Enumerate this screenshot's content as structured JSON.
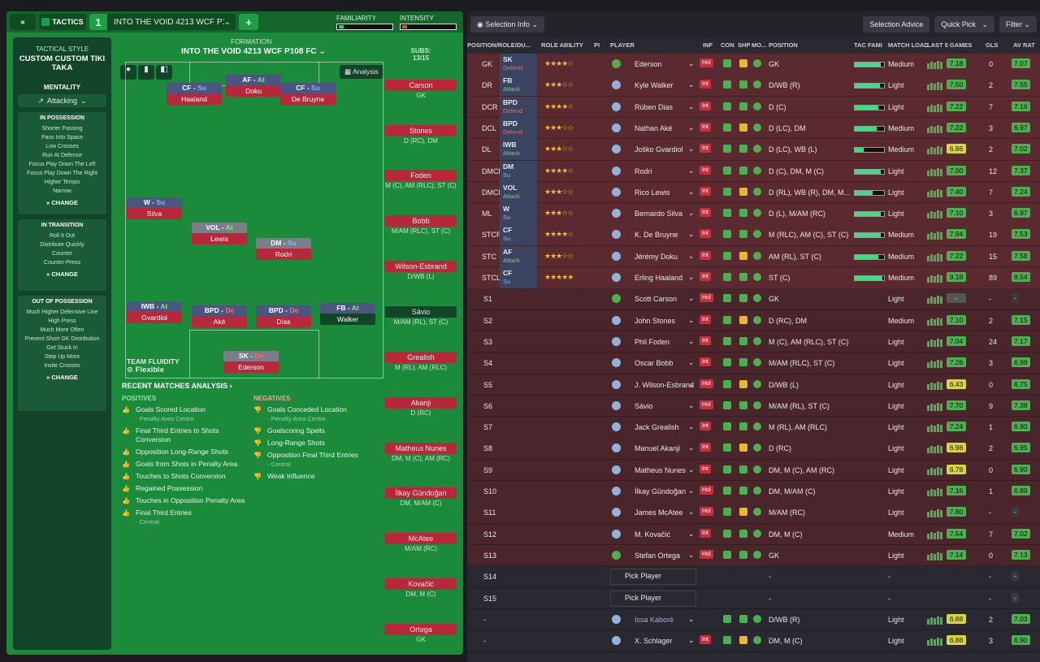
{
  "topbar": {
    "back": "«",
    "tactics_label": "TACTICS",
    "slot": "1",
    "tactic_name": "INTO THE VOID 4213  WCF P1...",
    "add": "+",
    "familiarity": "FAMILIARITY",
    "intensity": "INTENSITY"
  },
  "sidebar": {
    "style_title": "TACTICAL STYLE",
    "style": "CUSTOM CUSTOM TIKI TAKA",
    "mentality_title": "MENTALITY",
    "mentality": "Attacking",
    "in_possession": {
      "title": "IN POSSESSION",
      "items": [
        "Shorter Passing",
        "Pass Into Space",
        "Low Crosses",
        "Run At Defence",
        "Focus Play Down The Left",
        "Focus Play Down The Right",
        "Higher Tempo",
        "Narrow"
      ],
      "change": "CHANGE"
    },
    "in_transition": {
      "title": "IN TRANSITION",
      "items": [
        "Roll It Out",
        "Distribute Quickly",
        "Counter",
        "Counter-Press"
      ],
      "change": "CHANGE"
    },
    "out_of_possession": {
      "title": "OUT OF POSSESSION",
      "items": [
        "Much Higher Defensive Line",
        "High Press",
        "Much More Often",
        "Prevent Short GK Distribution",
        "Get Stuck In",
        "Step Up More",
        "Invite Crosses"
      ],
      "change": "CHANGE"
    }
  },
  "formation": {
    "title": "FORMATION",
    "name": "INTO THE VOID 4213  WCF P108 FC",
    "analysis": "Analysis",
    "fluidity_label": "TEAM FLUIDITY",
    "fluidity": "Flexible"
  },
  "pitch": [
    {
      "role": "CF",
      "duty": "Su",
      "name": "Haaland"
    },
    {
      "role": "AF",
      "duty": "At",
      "name": "Doku"
    },
    {
      "role": "CF",
      "duty": "Su",
      "name": "De Bruyne"
    },
    {
      "role": "W",
      "duty": "Su",
      "name": "Silva"
    },
    {
      "role": "VOL",
      "duty": "At",
      "name": "Lewis"
    },
    {
      "role": "DM",
      "duty": "Su",
      "name": "Rodri"
    },
    {
      "role": "IWB",
      "duty": "At",
      "name": "Gvardiol"
    },
    {
      "role": "BPD",
      "duty": "De",
      "name": "Aké"
    },
    {
      "role": "BPD",
      "duty": "De",
      "name": "Dias"
    },
    {
      "role": "FB",
      "duty": "At",
      "name": "Walker"
    },
    {
      "role": "SK",
      "duty": "De",
      "name": "Ederson"
    }
  ],
  "subs": {
    "label": "SUBS:",
    "count": "13/15",
    "list": [
      {
        "name": "Carson",
        "pos": "GK"
      },
      {
        "name": "Stones",
        "pos": "D (RC), DM"
      },
      {
        "name": "Foden",
        "pos": "M (C), AM (RLC), ST (C)"
      },
      {
        "name": "Bobb",
        "pos": "M/AM (RLC), ST (C)"
      },
      {
        "name": "Wilson-Esbrand",
        "pos": "D/WB (L)"
      },
      {
        "name": "Sávio",
        "pos": "M/AM (RL), ST (C)"
      },
      {
        "name": "Grealish",
        "pos": "M (RL), AM (RLC)"
      },
      {
        "name": "Akanji",
        "pos": "D (RC)"
      },
      {
        "name": "Matheus Nunes",
        "pos": "DM, M (C), AM (RC)"
      },
      {
        "name": "İlkay Gündoğan",
        "pos": "DM, M/AM (C)"
      },
      {
        "name": "McAtee",
        "pos": "M/AM (RC)"
      },
      {
        "name": "Kovačić",
        "pos": "DM, M (C)"
      },
      {
        "name": "Ortega",
        "pos": "GK"
      }
    ]
  },
  "analysis": {
    "title": "RECENT MATCHES ANALYSIS ›",
    "positives_title": "POSITIVES",
    "negatives_title": "NEGATIVES",
    "positives": [
      {
        "t": "Goals Scored Location",
        "s": "- Penalty Area Centre"
      },
      {
        "t": "Final Third Entries to Shots Conversion",
        "s": ""
      },
      {
        "t": "Opposition Long-Range Shots",
        "s": ""
      },
      {
        "t": "Goals from Shots in Penalty Area",
        "s": ""
      },
      {
        "t": "Touches to Shots Conversion",
        "s": ""
      },
      {
        "t": "Regained Possession",
        "s": ""
      },
      {
        "t": "Touches in Opposition Penalty Area",
        "s": ""
      },
      {
        "t": "Final Third Entries",
        "s": "- Central"
      }
    ],
    "negatives": [
      {
        "t": "Goals Conceded Location",
        "s": "- Penalty Area Centre"
      },
      {
        "t": "Goalscoring Spells",
        "s": ""
      },
      {
        "t": "Long-Range Shots",
        "s": ""
      },
      {
        "t": "Opposition Final Third Entries",
        "s": "- Central"
      },
      {
        "t": "Weak Influence",
        "s": ""
      }
    ]
  },
  "right": {
    "selection_info": "Selection Info",
    "selection_advice": "Selection Advice",
    "quick_pick": "Quick Pick",
    "filter": "Filter",
    "headers": [
      "POSITION/ROLE/DU...",
      "ROLE ABILITY",
      "PI",
      "PLAYER",
      "INF",
      "CON",
      "SHP",
      "MO...",
      "POSITION",
      "TAC FAMI",
      "MATCH LOAD",
      "LAST 5 GAMES",
      "GLS",
      "AV RAT"
    ],
    "rows": [
      {
        "pos": "GK",
        "role": "SK",
        "duty": "Defend",
        "stars": "★★★★☆",
        "player": "Ederson",
        "inf": "Hol",
        "position": "GK",
        "fam": 0.9,
        "load": "Medium",
        "rat": "7.18",
        "gls": "0",
        "av": "7.07"
      },
      {
        "pos": "DR",
        "role": "FB",
        "duty": "Attack",
        "stars": "★★★☆☆",
        "player": "Kyle Walker",
        "inf": "Int",
        "position": "D/WB (R)",
        "fam": 0.85,
        "load": "Light",
        "rat": "7.50",
        "gls": "2",
        "av": "7.55"
      },
      {
        "pos": "DCR",
        "role": "BPD",
        "duty": "Defend",
        "stars": "★★★★☆",
        "player": "Rúben Dias",
        "inf": "Int",
        "position": "D (C)",
        "fam": 0.8,
        "load": "Light",
        "rat": "7.22",
        "gls": "7",
        "av": "7.16"
      },
      {
        "pos": "DCL",
        "role": "BPD",
        "duty": "Defend",
        "stars": "★★★☆☆",
        "player": "Nathan Aké",
        "inf": "Int",
        "position": "D (LC), DM",
        "fam": 0.75,
        "load": "Medium",
        "rat": "7.22",
        "gls": "3",
        "av": "6.97"
      },
      {
        "pos": "DL",
        "role": "IWB",
        "duty": "Attack",
        "stars": "★★★☆☆",
        "player": "Joško Gvardiol",
        "inf": "Int",
        "position": "D (LC), WB (L)",
        "fam": 0.3,
        "load": "Medium",
        "rat": "6.86",
        "gls": "2",
        "av": "7.02"
      },
      {
        "pos": "DMCR",
        "role": "DM",
        "duty": "Su",
        "stars": "★★★★☆",
        "player": "Rodri",
        "inf": "Int",
        "position": "D (C), DM, M (C)",
        "fam": 0.9,
        "load": "Light",
        "rat": "7.00",
        "gls": "12",
        "av": "7.37"
      },
      {
        "pos": "DMCL",
        "role": "VOL",
        "duty": "Attack",
        "stars": "★★★☆☆",
        "player": "Rico Lewis",
        "inf": "Int",
        "position": "D (RL), WB (R), DM, M...",
        "fam": 0.6,
        "load": "Light",
        "rat": "7.40",
        "gls": "7",
        "av": "7.24"
      },
      {
        "pos": "ML",
        "role": "W",
        "duty": "Su",
        "stars": "★★★☆☆",
        "player": "Bernardo Silva",
        "inf": "Int",
        "position": "D (L), M/AM (RC)",
        "fam": 0.9,
        "load": "Light",
        "rat": "7.10",
        "gls": "3",
        "av": "6.97"
      },
      {
        "pos": "STCR",
        "role": "CF",
        "duty": "Su",
        "stars": "★★★★☆",
        "player": "K. De Bruyne",
        "inf": "Int",
        "position": "M (RLC), AM (C), ST (C)",
        "fam": 0.9,
        "load": "Medium",
        "rat": "7.94",
        "gls": "19",
        "av": "7.53"
      },
      {
        "pos": "STC",
        "role": "AF",
        "duty": "Attack",
        "stars": "★★★☆☆",
        "player": "Jérémy Doku",
        "inf": "Int",
        "position": "AM (RL), ST (C)",
        "fam": 0.8,
        "load": "Medium",
        "rat": "7.22",
        "gls": "15",
        "av": "7.58"
      },
      {
        "pos": "STCL",
        "role": "CF",
        "duty": "Su",
        "stars": "★★★★★",
        "player": "Erling Haaland",
        "inf": "Int",
        "position": "ST (C)",
        "fam": 0.95,
        "load": "Medium",
        "rat": "9.18",
        "gls": "89",
        "av": "8.54"
      },
      {
        "pos": "S1",
        "player": "Scott Carson",
        "inf": "Hol",
        "position": "GK",
        "load": "Light",
        "rat": "-",
        "gls": "-",
        "av": "-"
      },
      {
        "pos": "S2",
        "player": "John Stones",
        "inf": "Int",
        "position": "D (RC), DM",
        "load": "Medium",
        "rat": "7.10",
        "gls": "2",
        "av": "7.15"
      },
      {
        "pos": "S3",
        "player": "Phil Foden",
        "inf": "Int",
        "position": "M (C), AM (RLC), ST (C)",
        "load": "Light",
        "rat": "7.04",
        "gls": "24",
        "av": "7.17"
      },
      {
        "pos": "S4",
        "player": "Oscar Bobb",
        "inf": "Int",
        "position": "M/AM (RLC), ST (C)",
        "load": "Light",
        "rat": "7.26",
        "gls": "3",
        "av": "6.98"
      },
      {
        "pos": "S5",
        "player": "J. Wilson-Esbrand",
        "inf": "Hol",
        "position": "D/WB (L)",
        "load": "Light",
        "rat": "6.43",
        "gls": "0",
        "av": "6.75"
      },
      {
        "pos": "S6",
        "player": "Sávio",
        "inf": "Hol",
        "position": "M/AM (RL), ST (C)",
        "load": "Light",
        "rat": "7.70",
        "gls": "9",
        "av": "7.38"
      },
      {
        "pos": "S7",
        "player": "Jack Grealish",
        "inf": "Int",
        "position": "M (RL), AM (RLC)",
        "load": "Light",
        "rat": "7.24",
        "gls": "1",
        "av": "6.90"
      },
      {
        "pos": "S8",
        "player": "Manuel Akanji",
        "inf": "Int",
        "position": "D (RC)",
        "load": "Light",
        "rat": "6.98",
        "gls": "2",
        "av": "6.95"
      },
      {
        "pos": "S9",
        "player": "Matheus Nunes",
        "inf": "Int",
        "position": "DM, M (C), AM (RC)",
        "load": "Light",
        "rat": "6.78",
        "gls": "0",
        "av": "6.90"
      },
      {
        "pos": "S10",
        "player": "İlkay Gündoğan",
        "inf": "Hol",
        "position": "DM, M/AM (C)",
        "load": "Light",
        "rat": "7.16",
        "gls": "1",
        "av": "6.89"
      },
      {
        "pos": "S11",
        "player": "James McAtee",
        "inf": "Hol",
        "position": "M/AM (RC)",
        "load": "Light",
        "rat": "7.80",
        "gls": "-",
        "av": "-"
      },
      {
        "pos": "S12",
        "player": "M. Kovačić",
        "inf": "Int",
        "position": "DM, M (C)",
        "load": "Medium",
        "rat": "7.54",
        "gls": "7",
        "av": "7.02"
      },
      {
        "pos": "S13",
        "player": "Stefan Ortega",
        "inf": "Hol",
        "position": "GK",
        "load": "Light",
        "rat": "7.14",
        "gls": "0",
        "av": "7.13"
      },
      {
        "pos": "S14",
        "player": "Pick Player",
        "inf": "",
        "position": "-",
        "load": "-",
        "rat": "-",
        "gls": "-",
        "av": "-"
      },
      {
        "pos": "S15",
        "player": "Pick Player",
        "inf": "",
        "position": "-",
        "load": "-",
        "rat": "-",
        "gls": "-",
        "av": "-"
      },
      {
        "pos": "-",
        "player": "Issa Kaboré",
        "inf": "",
        "position": "D/WB (R)",
        "load": "Light",
        "rat": "6.88",
        "gls": "2",
        "av": "7.03"
      },
      {
        "pos": "-",
        "player": "X. Schlager",
        "inf": "Int",
        "position": "DM, M (C)",
        "load": "Light",
        "rat": "6.88",
        "gls": "3",
        "av": "6.90"
      }
    ]
  }
}
